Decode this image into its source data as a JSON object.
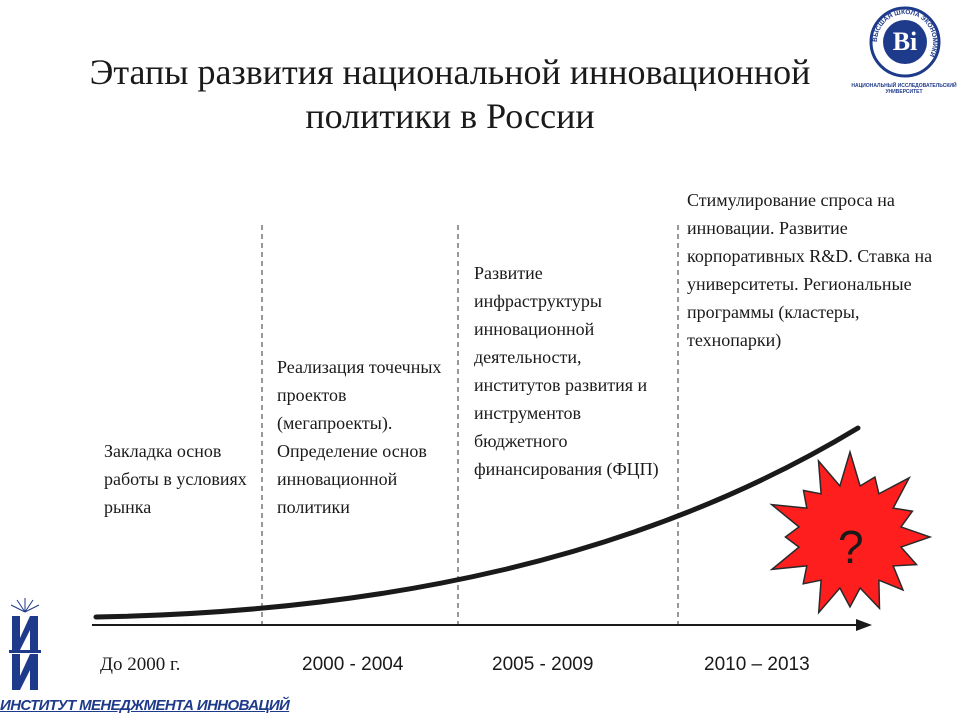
{
  "title": "Этапы развития национальной инновационной политики в России",
  "stages": [
    {
      "text": "Закладка основ работы в условиях рынка",
      "period": "До 2000 г."
    },
    {
      "text": "Реализация точечных проектов (мегапроекты). Определение основ инновационной политики",
      "period": "2000 - 2004"
    },
    {
      "text": "Развитие инфраструктуры инновационной деятельности, институтов развития и инструментов бюджетного финансирования (ФЦП)",
      "period": "2005 - 2009"
    },
    {
      "text": "Стимулирование спроса на инновации. Развитие корпоративных R&D. Ставка на университеты. Региональные программы (кластеры, технопарки)",
      "period": "2010 – 2013"
    }
  ],
  "question_mark": "?",
  "logos": {
    "hse_caption": "НАЦИОНАЛЬНЫЙ ИССЛЕДОВАТЕЛЬСКИЙ УНИВЕРСИТЕТ",
    "hse_ring": "ВЫСШАЯ ШКОЛА ЭКОНОМИКИ",
    "imi_name": "ИНСТИТУТ МЕНЕДЖМЕНТА ИННОВАЦИЙ"
  },
  "colors": {
    "burst": "#ff1e1e",
    "logo_blue": "#1e3a8a",
    "text": "#1a1a1a"
  }
}
